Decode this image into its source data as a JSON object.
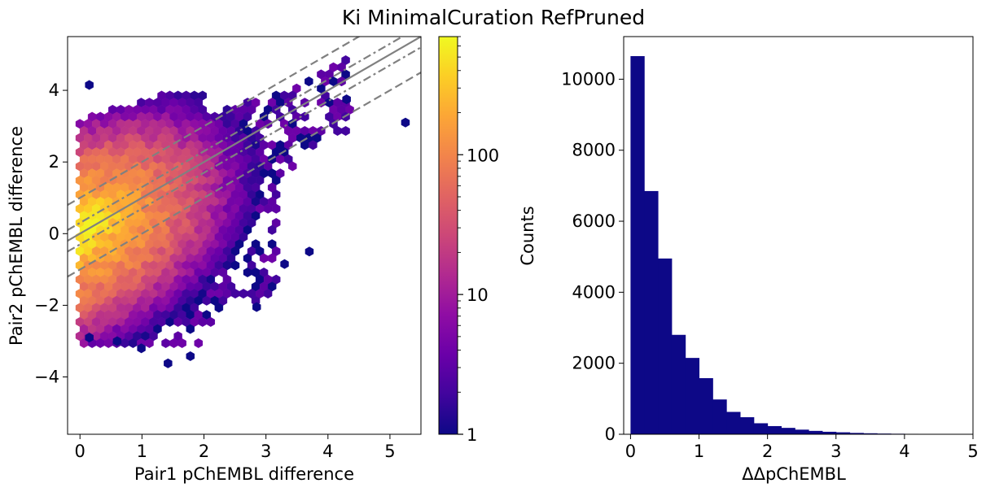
{
  "figure": {
    "title": "Ki MinimalCuration RefPruned"
  },
  "chart_data": [
    {
      "type": "hexbin",
      "xlabel": "Pair1 pChEMBL difference",
      "ylabel": "Pair2 pChEMBL difference",
      "xlim": [
        -0.2,
        5.5
      ],
      "ylim": [
        -5.6,
        5.5
      ],
      "xticks": [
        "0",
        "1",
        "2",
        "3",
        "4",
        "5"
      ],
      "yticks": [
        "−4",
        "−2",
        "0",
        "2",
        "4"
      ],
      "xtick_values": [
        0,
        1,
        2,
        3,
        4,
        5
      ],
      "ytick_values": [
        -4,
        -2,
        0,
        2,
        4
      ],
      "colormap": "plasma",
      "color_scale": "log",
      "colorbar": {
        "label": "Counts",
        "range": [
          1,
          700
        ],
        "ticks": [
          "1",
          "10",
          "100"
        ],
        "tick_values": [
          1,
          10,
          100
        ]
      },
      "reference_lines": [
        {
          "style": "solid",
          "slope": 1,
          "intercept": 0
        },
        {
          "style": "dashdot",
          "slope": 1,
          "intercept": 0.3
        },
        {
          "style": "dashdot",
          "slope": 1,
          "intercept": -0.3
        },
        {
          "style": "dashed",
          "slope": 1,
          "intercept": 1.0
        },
        {
          "style": "dashed",
          "slope": 1,
          "intercept": -1.0
        }
      ],
      "line_color": "#808080"
    },
    {
      "type": "bar",
      "xlabel": "ΔΔpChEMBL",
      "ylabel": "",
      "xlim": [
        -0.1,
        5.0
      ],
      "ylim": [
        0,
        11200
      ],
      "xticks": [
        "0",
        "1",
        "2",
        "3",
        "4",
        "5"
      ],
      "yticks": [
        "0",
        "2000",
        "4000",
        "6000",
        "8000",
        "10000"
      ],
      "xtick_values": [
        0,
        1,
        2,
        3,
        4,
        5
      ],
      "ytick_values": [
        0,
        2000,
        4000,
        6000,
        8000,
        10000
      ],
      "bin_edges": [
        0,
        0.2,
        0.4,
        0.6,
        0.8,
        1.0,
        1.2,
        1.4,
        1.6,
        1.8,
        2.0,
        2.2,
        2.4,
        2.6,
        2.8,
        3.0,
        3.2,
        3.4,
        3.6,
        3.8,
        4.0,
        4.2,
        4.4
      ],
      "values": [
        10650,
        6850,
        4950,
        2800,
        2150,
        1580,
        980,
        630,
        480,
        310,
        230,
        180,
        130,
        95,
        70,
        55,
        38,
        28,
        20,
        15,
        12,
        8
      ],
      "color": "#0d0887"
    }
  ]
}
